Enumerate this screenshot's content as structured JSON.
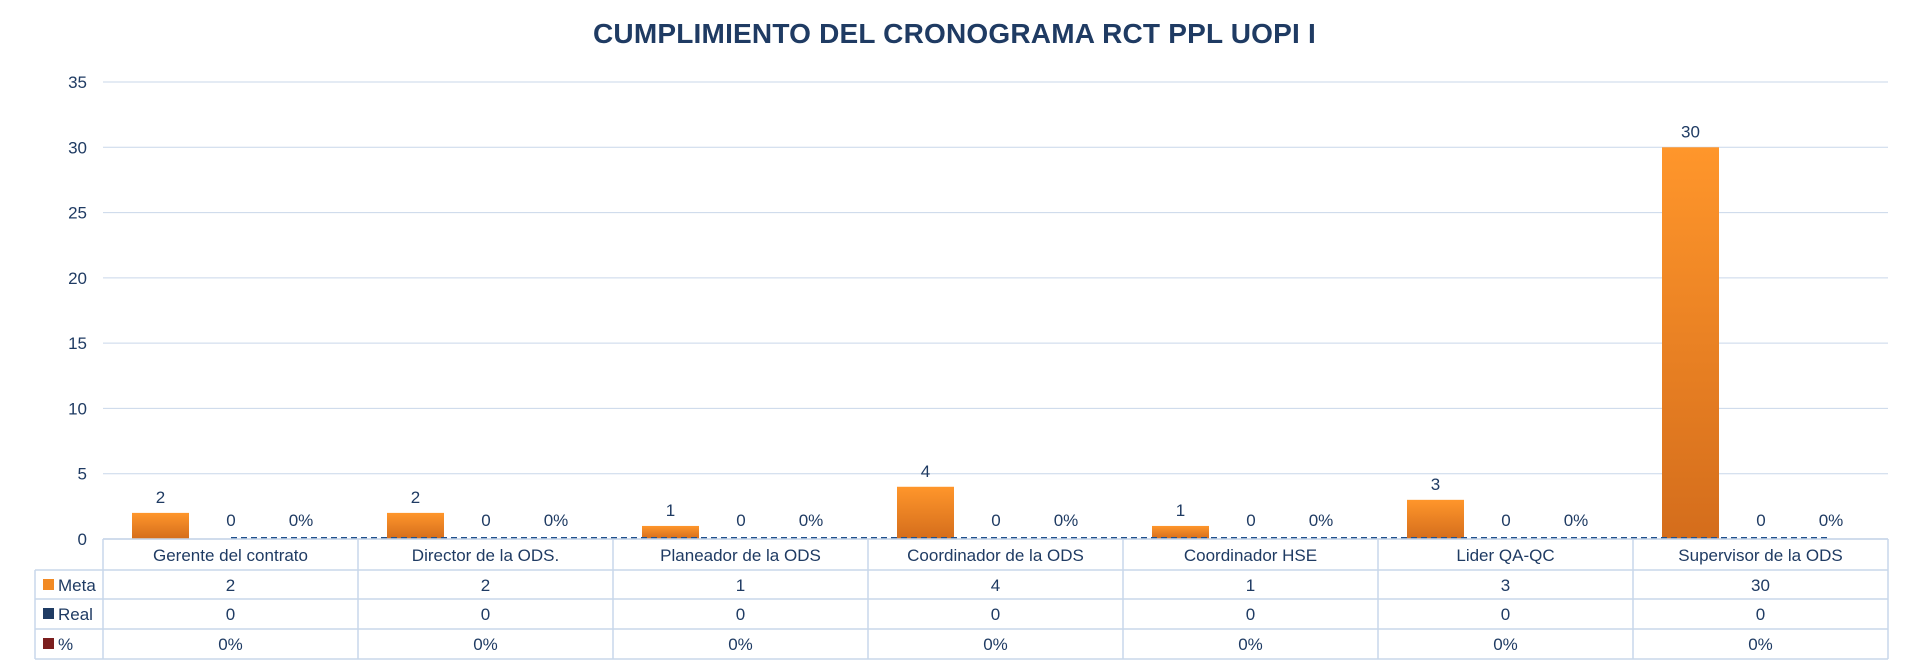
{
  "chart_data": {
    "type": "bar",
    "title": "CUMPLIMIENTO DEL CRONOGRAMA RCT PPL UOPI I",
    "categories": [
      "Gerente del contrato",
      "Director de la ODS.",
      "Planeador de la ODS",
      "Coordinador de la ODS",
      "Coordinador HSE",
      "Lider QA-QC",
      "Supervisor de la ODS"
    ],
    "series": [
      {
        "name": "Meta",
        "values": [
          2,
          2,
          1,
          4,
          1,
          3,
          30
        ],
        "labels": [
          "2",
          "2",
          "1",
          "4",
          "1",
          "3",
          "30"
        ],
        "color": "#f28a24"
      },
      {
        "name": "Real",
        "values": [
          0,
          0,
          0,
          0,
          0,
          0,
          0
        ],
        "labels": [
          "0",
          "0",
          "0",
          "0",
          "0",
          "0",
          "0"
        ],
        "color": "#1f3b63"
      },
      {
        "name": "%",
        "values": [
          0,
          0,
          0,
          0,
          0,
          0,
          0
        ],
        "labels": [
          "0%",
          "0%",
          "0%",
          "0%",
          "0%",
          "0%",
          "0%"
        ],
        "color": "#7b1e1e"
      }
    ],
    "ylim": [
      0,
      35
    ],
    "yticks": [
      "0",
      "5",
      "10",
      "15",
      "20",
      "25",
      "30",
      "35"
    ],
    "grid": true,
    "legend": "data-table"
  }
}
